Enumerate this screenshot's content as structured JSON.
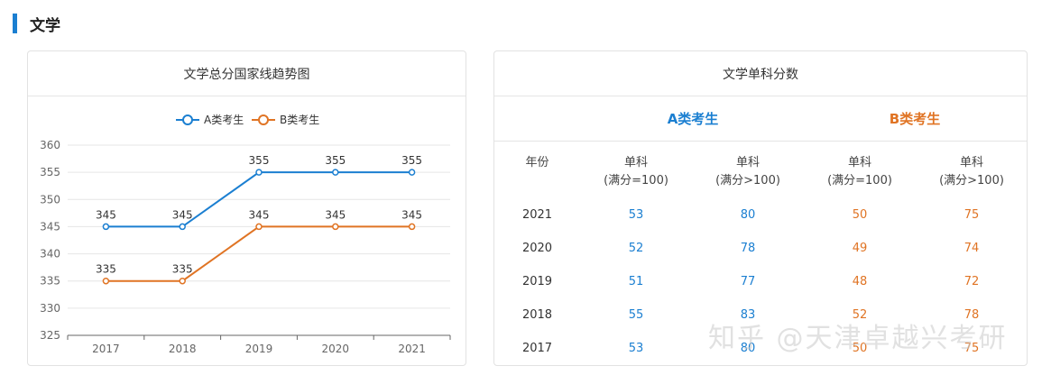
{
  "section": {
    "title": "文学"
  },
  "left_card": {
    "title": "文学总分国家线趋势图"
  },
  "right_card": {
    "title": "文学单科分数",
    "group_a": "A类考生",
    "group_b": "B类考生",
    "columns": [
      {
        "line1": "年份",
        "line2": ""
      },
      {
        "line1": "单科",
        "line2": "(满分=100)"
      },
      {
        "line1": "单科",
        "line2": "(满分>100)"
      },
      {
        "line1": "单科",
        "line2": "(满分=100)"
      },
      {
        "line1": "单科",
        "line2": "(满分>100)"
      }
    ],
    "rows": [
      {
        "year": "2021",
        "a100": "53",
        "a_over": "80",
        "b100": "50",
        "b_over": "75"
      },
      {
        "year": "2020",
        "a100": "52",
        "a_over": "78",
        "b100": "49",
        "b_over": "74"
      },
      {
        "year": "2019",
        "a100": "51",
        "a_over": "77",
        "b100": "48",
        "b_over": "72"
      },
      {
        "year": "2018",
        "a100": "55",
        "a_over": "83",
        "b100": "52",
        "b_over": "78"
      },
      {
        "year": "2017",
        "a100": "53",
        "a_over": "80",
        "b100": "50",
        "b_over": "75"
      }
    ]
  },
  "chart_data": {
    "type": "line",
    "title": "文学总分国家线趋势图",
    "categories": [
      "2017",
      "2018",
      "2019",
      "2020",
      "2021"
    ],
    "series": [
      {
        "name": "A类考生",
        "values": [
          345,
          345,
          355,
          355,
          355
        ],
        "color": "#1b7fd1"
      },
      {
        "name": "B类考生",
        "values": [
          335,
          335,
          345,
          345,
          345
        ],
        "color": "#e07424"
      }
    ],
    "ylim": [
      325,
      360
    ],
    "yticks": [
      325,
      330,
      335,
      340,
      345,
      350,
      355,
      360
    ],
    "grid": true,
    "legend": "top-center",
    "data_labels": true
  },
  "watermark": "知乎 @天津卓越兴考研"
}
